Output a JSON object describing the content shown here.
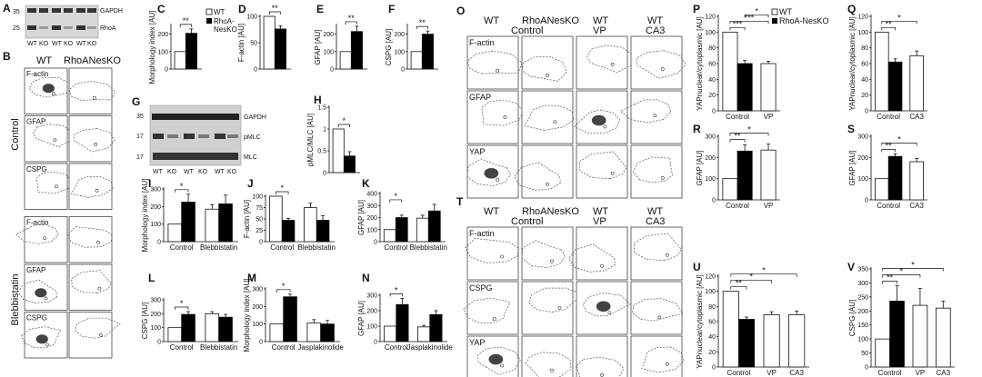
{
  "panels": {
    "A": {
      "label": "A",
      "markers": [
        "35",
        "25"
      ],
      "bands": [
        "GAPDH",
        "RhoA"
      ],
      "lanes": [
        "WT",
        "KO",
        "WT",
        "KO",
        "WT",
        "KO"
      ]
    },
    "B": {
      "label": "B",
      "columns": [
        "WT",
        "RhoANesKO"
      ],
      "rows": [
        "F-actin",
        "GFAP",
        "CSPG",
        "F-actin",
        "GFAP",
        "CSPG"
      ],
      "groups": [
        "Control",
        "Blebbistatin"
      ]
    },
    "G": {
      "label": "G",
      "markers": [
        "35",
        "17",
        "17"
      ],
      "bands": [
        "GAPDH",
        "pMLC",
        "MLC"
      ],
      "lanes": [
        "WT",
        "KO",
        "WT",
        "KO",
        "WT",
        "KO"
      ]
    },
    "O": {
      "label": "O",
      "columns": [
        "WT",
        "RhoANesKO",
        "WT",
        "WT"
      ],
      "subcolumns": [
        "Control",
        "VP",
        "CA3"
      ],
      "rows": [
        "F-actin",
        "GFAP",
        "YAP"
      ]
    },
    "T": {
      "label": "T",
      "columns": [
        "WT",
        "RhoANesKO",
        "WT",
        "WT"
      ],
      "subcolumns": [
        "Control",
        "VP",
        "CA3"
      ],
      "rows": [
        "F-actin",
        "CSPG",
        "YAP"
      ]
    }
  },
  "legend": {
    "wt": "WT",
    "ko": "RhoA-NesKO"
  },
  "colors": {
    "wt": "#ffffff",
    "ko": "#000000"
  },
  "chart_data": [
    {
      "id": "C",
      "type": "bar",
      "ylabel": "Morphology index [AU]",
      "ylim": [
        0,
        250
      ],
      "yticks": [
        0,
        100,
        200
      ],
      "categories": [
        ""
      ],
      "series": [
        {
          "name": "WT",
          "values": [
            100
          ],
          "errors": [
            0
          ]
        },
        {
          "name": "RhoA-NesKO",
          "values": [
            205
          ],
          "errors": [
            25
          ]
        }
      ],
      "significance": [
        {
          "text": "**",
          "from": 0,
          "to": 1
        }
      ]
    },
    {
      "id": "D",
      "type": "bar",
      "ylabel": "F-actin [AU]",
      "ylim": [
        0,
        100
      ],
      "yticks": [
        0,
        50,
        100
      ],
      "categories": [
        ""
      ],
      "series": [
        {
          "name": "WT",
          "values": [
            100
          ],
          "errors": [
            0
          ]
        },
        {
          "name": "RhoA-NesKO",
          "values": [
            76
          ],
          "errors": [
            6
          ]
        }
      ],
      "significance": [
        {
          "text": "**",
          "from": 0,
          "to": 1
        }
      ]
    },
    {
      "id": "E",
      "type": "bar",
      "ylabel": "GFAP [AU]",
      "ylim": [
        0,
        250
      ],
      "yticks": [
        0,
        100,
        200
      ],
      "categories": [
        ""
      ],
      "series": [
        {
          "name": "WT",
          "values": [
            100
          ],
          "errors": [
            0
          ]
        },
        {
          "name": "RhoA-NesKO",
          "values": [
            215
          ],
          "errors": [
            30
          ]
        }
      ],
      "significance": [
        {
          "text": "**",
          "from": 0,
          "to": 1
        }
      ]
    },
    {
      "id": "F",
      "type": "bar",
      "ylabel": "CSPG [AU]",
      "ylim": [
        0,
        250
      ],
      "yticks": [
        0,
        100,
        200
      ],
      "categories": [
        ""
      ],
      "series": [
        {
          "name": "WT",
          "values": [
            100
          ],
          "errors": [
            0
          ]
        },
        {
          "name": "RhoA-NesKO",
          "values": [
            200
          ],
          "errors": [
            18
          ]
        }
      ],
      "significance": [
        {
          "text": "**",
          "from": 0,
          "to": 1
        }
      ]
    },
    {
      "id": "H",
      "type": "bar",
      "ylabel": "pMLC/MLC [AU]",
      "ylim": [
        0,
        1.5
      ],
      "yticks": [
        0,
        0.5,
        1,
        1.5
      ],
      "categories": [
        ""
      ],
      "series": [
        {
          "name": "WT",
          "values": [
            1
          ],
          "errors": [
            0
          ]
        },
        {
          "name": "RhoA-NesKO",
          "values": [
            0.38
          ],
          "errors": [
            0.1
          ]
        }
      ],
      "significance": [
        {
          "text": "*",
          "from": 0,
          "to": 1
        }
      ]
    },
    {
      "id": "I",
      "type": "bar",
      "ylabel": "Morphology index [AU]",
      "ylim": [
        0,
        300
      ],
      "yticks": [
        0,
        100,
        200,
        300
      ],
      "categories": [
        "Control",
        "Blebbistatin"
      ],
      "series": [
        {
          "name": "WT",
          "values": [
            100,
            185
          ],
          "errors": [
            0,
            25
          ]
        },
        {
          "name": "RhoA-NesKO",
          "values": [
            225,
            215
          ],
          "errors": [
            45,
            50
          ]
        }
      ],
      "significance": [
        {
          "text": "*",
          "from": 0,
          "to": 1
        }
      ]
    },
    {
      "id": "J",
      "type": "bar",
      "ylabel": "F-actin [AU]",
      "ylim": [
        0,
        100
      ],
      "yticks": [
        0,
        25,
        50,
        75,
        100
      ],
      "categories": [
        "Control",
        "Blebbistatin"
      ],
      "series": [
        {
          "name": "WT",
          "values": [
            100,
            75
          ],
          "errors": [
            0,
            10
          ]
        },
        {
          "name": "RhoA-NesKO",
          "values": [
            47,
            47
          ],
          "errors": [
            4,
            10
          ]
        }
      ],
      "significance": [
        {
          "text": "*",
          "from": 0,
          "to": 1
        }
      ]
    },
    {
      "id": "K",
      "type": "bar",
      "ylabel": "GFAP [AU]",
      "ylim": [
        0,
        400
      ],
      "yticks": [
        0,
        100,
        200,
        300,
        400
      ],
      "categories": [
        "Control",
        "Blebbistatin"
      ],
      "series": [
        {
          "name": "WT",
          "values": [
            100,
            195
          ],
          "errors": [
            0,
            25
          ]
        },
        {
          "name": "RhoA-NesKO",
          "values": [
            200,
            255
          ],
          "errors": [
            20,
            55
          ]
        }
      ],
      "significance": [
        {
          "text": "*",
          "from": 0,
          "to": 1
        }
      ]
    },
    {
      "id": "L",
      "type": "bar",
      "ylabel": "CSPG [AU]",
      "ylim": [
        0,
        300
      ],
      "yticks": [
        0,
        100,
        200,
        300
      ],
      "categories": [
        "Control",
        "Blebbistatin"
      ],
      "series": [
        {
          "name": "WT",
          "values": [
            100,
            200
          ],
          "errors": [
            0,
            15
          ]
        },
        {
          "name": "RhoA-NesKO",
          "values": [
            195,
            175
          ],
          "errors": [
            20,
            20
          ]
        }
      ],
      "significance": [
        {
          "text": "*",
          "from": 0,
          "to": 1
        }
      ]
    },
    {
      "id": "M",
      "type": "bar",
      "ylabel": "Morphology index [AU]",
      "ylim": [
        0,
        300
      ],
      "yticks": [
        0,
        100,
        200,
        300
      ],
      "categories": [
        "Control",
        "Jasplakinolide"
      ],
      "series": [
        {
          "name": "WT",
          "values": [
            100,
            105
          ],
          "errors": [
            0,
            20
          ]
        },
        {
          "name": "RhoA-NesKO",
          "values": [
            255,
            100
          ],
          "errors": [
            15,
            20
          ]
        }
      ],
      "significance": [
        {
          "text": "*",
          "from": 0,
          "to": 1
        }
      ]
    },
    {
      "id": "N",
      "type": "bar",
      "ylabel": "GFAP [AU]",
      "ylim": [
        0,
        300
      ],
      "yticks": [
        0,
        100,
        200,
        300
      ],
      "categories": [
        "Control",
        "Jasplakinolide"
      ],
      "series": [
        {
          "name": "WT",
          "values": [
            100,
            95
          ],
          "errors": [
            0,
            10
          ]
        },
        {
          "name": "RhoA-NesKO",
          "values": [
            240,
            175
          ],
          "errors": [
            40,
            25
          ]
        }
      ],
      "significance": [
        {
          "text": "*",
          "from": 0,
          "to": 1
        }
      ]
    },
    {
      "id": "P",
      "type": "bar",
      "ylabel": "YAPnuclear/cytoplasmic [AU]",
      "ylim": [
        0,
        120
      ],
      "yticks": [
        0,
        20,
        40,
        60,
        80,
        100,
        120
      ],
      "groups": [
        {
          "label": "Control",
          "bars": [
            {
              "series": "WT",
              "value": 100,
              "error": 0
            },
            {
              "series": "RhoA-NesKO",
              "value": 60,
              "error": 4
            }
          ]
        },
        {
          "label": "VP",
          "bars": [
            {
              "series": "WT",
              "value": 60,
              "error": 3
            }
          ]
        }
      ],
      "significance": [
        {
          "text": "***",
          "from": 0,
          "to": 1
        },
        {
          "text": "***",
          "from": 0,
          "to": 2
        },
        {
          "text": "*",
          "from": 1,
          "to": 2
        }
      ]
    },
    {
      "id": "Q",
      "type": "bar",
      "ylabel": "YAPnuclear/cytoplasmic [AU]",
      "ylim": [
        0,
        120
      ],
      "yticks": [
        0,
        20,
        40,
        60,
        80,
        100,
        120
      ],
      "groups": [
        {
          "label": "Control",
          "bars": [
            {
              "series": "WT",
              "value": 100,
              "error": 0
            },
            {
              "series": "RhoA-NesKO",
              "value": 62,
              "error": 4
            }
          ]
        },
        {
          "label": "CA3",
          "bars": [
            {
              "series": "WT",
              "value": 70,
              "error": 6
            }
          ]
        }
      ],
      "significance": [
        {
          "text": "**",
          "from": 0,
          "to": 1
        },
        {
          "text": "*",
          "from": 0,
          "to": 2
        }
      ]
    },
    {
      "id": "R",
      "type": "bar",
      "ylabel": "GFAP [AU]",
      "ylim": [
        0,
        300
      ],
      "yticks": [
        0,
        100,
        200,
        300
      ],
      "groups": [
        {
          "label": "Control",
          "bars": [
            {
              "series": "WT",
              "value": 100,
              "error": 0
            },
            {
              "series": "RhoA-NesKO",
              "value": 230,
              "error": 30
            }
          ]
        },
        {
          "label": "VP",
          "bars": [
            {
              "series": "WT",
              "value": 235,
              "error": 28
            }
          ]
        }
      ],
      "significance": [
        {
          "text": "**",
          "from": 0,
          "to": 1
        },
        {
          "text": "*",
          "from": 0,
          "to": 2
        }
      ]
    },
    {
      "id": "S",
      "type": "bar",
      "ylabel": "GFAP [AU]",
      "ylim": [
        0,
        300
      ],
      "yticks": [
        0,
        100,
        200,
        300
      ],
      "groups": [
        {
          "label": "Control",
          "bars": [
            {
              "series": "WT",
              "value": 100,
              "error": 0
            },
            {
              "series": "RhoA-NesKO",
              "value": 205,
              "error": 12
            }
          ]
        },
        {
          "label": "CA3",
          "bars": [
            {
              "series": "WT",
              "value": 180,
              "error": 15
            }
          ]
        }
      ],
      "significance": [
        {
          "text": "**",
          "from": 0,
          "to": 1
        },
        {
          "text": "*",
          "from": 0,
          "to": 2
        }
      ]
    },
    {
      "id": "U",
      "type": "bar",
      "ylabel": "YAPnuclear/cytoplasmic [AU]",
      "ylim": [
        0,
        120
      ],
      "yticks": [
        0,
        20,
        40,
        60,
        80,
        100,
        120
      ],
      "groups": [
        {
          "label": "Control",
          "bars": [
            {
              "series": "WT",
              "value": 100,
              "error": 0
            },
            {
              "series": "RhoA-NesKO",
              "value": 63,
              "error": 3
            }
          ]
        },
        {
          "label": "VP",
          "bars": [
            {
              "series": "WT",
              "value": 69,
              "error": 4
            }
          ]
        },
        {
          "label": "CA3",
          "bars": [
            {
              "series": "WT",
              "value": 69,
              "error": 5
            }
          ]
        }
      ],
      "significance": [
        {
          "text": "**",
          "from": 0,
          "to": 1
        },
        {
          "text": "*",
          "from": 0,
          "to": 2
        },
        {
          "text": "*",
          "from": 0,
          "to": 3
        }
      ]
    },
    {
      "id": "V",
      "type": "bar",
      "ylabel": "CSPG [AU]",
      "ylim": [
        0,
        350
      ],
      "yticks": [
        0,
        50,
        100,
        150,
        200,
        250,
        300,
        350
      ],
      "groups": [
        {
          "label": "Control",
          "bars": [
            {
              "series": "WT",
              "value": 100,
              "error": 0
            },
            {
              "series": "RhoA-NesKO",
              "value": 235,
              "error": 55
            }
          ]
        },
        {
          "label": "VP",
          "bars": [
            {
              "series": "WT",
              "value": 220,
              "error": 60
            }
          ]
        },
        {
          "label": "CA3",
          "bars": [
            {
              "series": "WT",
              "value": 210,
              "error": 25
            }
          ]
        }
      ],
      "significance": [
        {
          "text": "**",
          "from": 0,
          "to": 1
        },
        {
          "text": "*",
          "from": 0,
          "to": 2
        },
        {
          "text": "*",
          "from": 0,
          "to": 3
        }
      ]
    }
  ]
}
